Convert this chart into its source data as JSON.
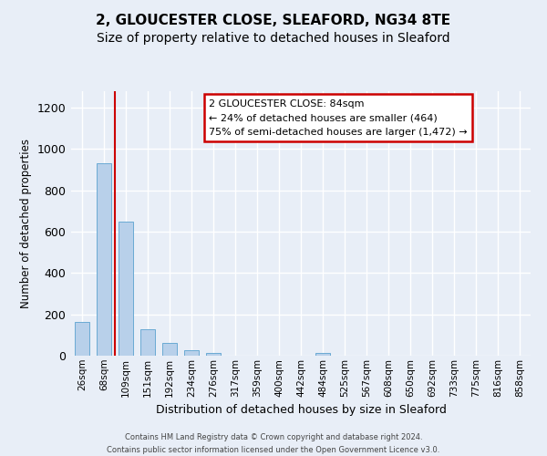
{
  "title": "2, GLOUCESTER CLOSE, SLEAFORD, NG34 8TE",
  "subtitle": "Size of property relative to detached houses in Sleaford",
  "xlabel": "Distribution of detached houses by size in Sleaford",
  "ylabel": "Number of detached properties",
  "bar_labels": [
    "26sqm",
    "68sqm",
    "109sqm",
    "151sqm",
    "192sqm",
    "234sqm",
    "276sqm",
    "317sqm",
    "359sqm",
    "400sqm",
    "442sqm",
    "484sqm",
    "525sqm",
    "567sqm",
    "608sqm",
    "650sqm",
    "692sqm",
    "733sqm",
    "775sqm",
    "816sqm",
    "858sqm"
  ],
  "bar_heights": [
    163,
    930,
    648,
    127,
    60,
    28,
    15,
    0,
    0,
    0,
    0,
    15,
    0,
    0,
    0,
    0,
    0,
    0,
    0,
    0,
    0
  ],
  "bar_color": "#b8d0ea",
  "bar_edge_color": "#6aaad4",
  "vline_x_data": 1.5,
  "vline_color": "#cc0000",
  "ylim": [
    0,
    1280
  ],
  "yticks": [
    0,
    200,
    400,
    600,
    800,
    1000,
    1200
  ],
  "annotation_title": "2 GLOUCESTER CLOSE: 84sqm",
  "annotation_line1": "← 24% of detached houses are smaller (464)",
  "annotation_line2": "75% of semi-detached houses are larger (1,472) →",
  "annotation_box_color": "#ffffff",
  "annotation_border_color": "#cc0000",
  "footer_line1": "Contains HM Land Registry data © Crown copyright and database right 2024.",
  "footer_line2": "Contains public sector information licensed under the Open Government Licence v3.0.",
  "bg_color": "#e8eef7",
  "plot_bg_color": "#e8eef7",
  "grid_color": "#ffffff",
  "title_fontsize": 11,
  "subtitle_fontsize": 10
}
